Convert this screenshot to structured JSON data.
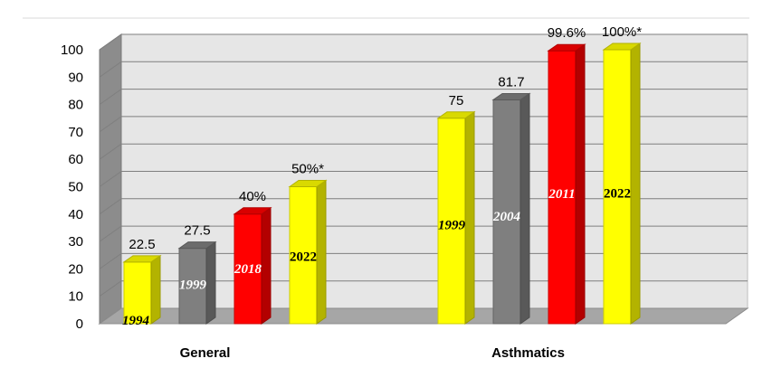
{
  "chart_data": {
    "type": "bar",
    "ylim": [
      0,
      100
    ],
    "yticks": [
      "0",
      "10",
      "20",
      "30",
      "40",
      "50",
      "60",
      "70",
      "80",
      "90",
      "100"
    ],
    "groups": [
      {
        "name": "General",
        "bars": [
          {
            "year": "1994",
            "value": 22.5,
            "label": "22.5",
            "color": "#FFFF00"
          },
          {
            "year": "1999",
            "value": 27.5,
            "label": "27.5",
            "color": "#7F7F7F"
          },
          {
            "year": "2018",
            "value": 40,
            "label": "40%",
            "color": "#FF0000"
          },
          {
            "year": "2022",
            "value": 50,
            "label": "50%*",
            "color": "#FFFF00"
          }
        ]
      },
      {
        "name": "Asthmatics",
        "bars": [
          {
            "year": "1999",
            "value": 75,
            "label": "75",
            "color": "#FFFF00"
          },
          {
            "year": "2004",
            "value": 81.7,
            "label": "81.7",
            "color": "#7F7F7F"
          },
          {
            "year": "2011",
            "value": 99.6,
            "label": "99.6%",
            "color": "#FF0000"
          },
          {
            "year": "2022",
            "value": 100,
            "label": "100%*",
            "color": "#FFFF00"
          }
        ]
      }
    ],
    "grid": true,
    "legend": "none"
  }
}
